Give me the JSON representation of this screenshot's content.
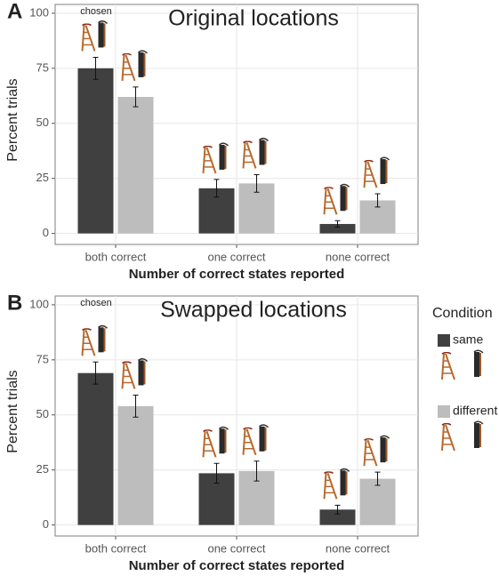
{
  "chart_data": [
    {
      "type": "bar",
      "panel_label": "A",
      "title": "Original locations",
      "annotation": "chosen",
      "x_label": "Number of correct states reported",
      "y_label": "Percent trials",
      "categories": [
        "both correct",
        "one correct",
        "none correct"
      ],
      "series": [
        {
          "name": "same",
          "color": "#404040",
          "values": [
            75,
            20.5,
            4.3
          ],
          "errors": [
            5,
            4,
            1.5
          ]
        },
        {
          "name": "different",
          "color": "#bdbdbd",
          "values": [
            62,
            22.7,
            15
          ],
          "errors": [
            4.5,
            4,
            3
          ]
        }
      ],
      "ylim": [
        -5,
        104
      ],
      "yticks": [
        0,
        25,
        50,
        75,
        100
      ],
      "grid": true
    },
    {
      "type": "bar",
      "panel_label": "B",
      "title": "Swapped locations",
      "annotation": "chosen",
      "x_label": "Number of correct states reported",
      "y_label": "Percent trials",
      "categories": [
        "both correct",
        "one correct",
        "none correct"
      ],
      "series": [
        {
          "name": "same",
          "color": "#404040",
          "values": [
            69,
            23.5,
            7
          ],
          "errors": [
            5,
            4.5,
            2
          ]
        },
        {
          "name": "different",
          "color": "#bdbdbd",
          "values": [
            54,
            24.5,
            21
          ],
          "errors": [
            5,
            4.5,
            3
          ]
        }
      ],
      "ylim": [
        -5,
        104
      ],
      "yticks": [
        0,
        25,
        50,
        75,
        100
      ],
      "grid": true,
      "legend_title": "Condition",
      "legend": "right"
    }
  ]
}
